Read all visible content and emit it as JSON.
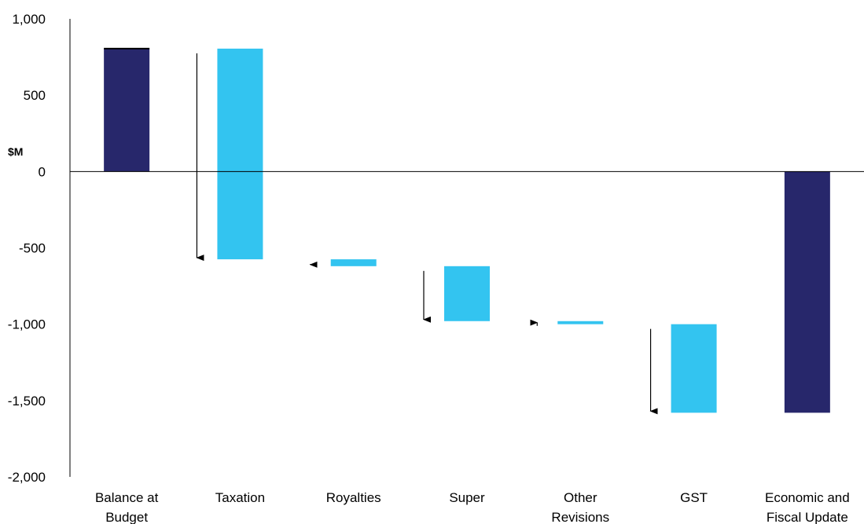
{
  "chart_data": {
    "type": "bar",
    "subtype": "waterfall",
    "ylabel": "$M",
    "ylim": [
      -2000,
      1000
    ],
    "yticks": [
      1000,
      500,
      0,
      -500,
      -1000,
      -1500,
      -2000
    ],
    "ytick_labels": [
      "1,000",
      "500",
      "0",
      "-500",
      "-1,000",
      "-1,500",
      "-2,000"
    ],
    "categories": [
      [
        "Balance at",
        "Budget"
      ],
      [
        "Taxation"
      ],
      [
        "Royalties"
      ],
      [
        "Super"
      ],
      [
        "Other",
        "Revisions"
      ],
      [
        "GST"
      ],
      [
        "Economic and",
        "Fiscal Update"
      ]
    ],
    "bars": [
      {
        "kind": "total",
        "start": 0,
        "end": 805
      },
      {
        "kind": "change",
        "start": 805,
        "end": -575
      },
      {
        "kind": "change",
        "start": -575,
        "end": -620
      },
      {
        "kind": "change",
        "start": -620,
        "end": -980
      },
      {
        "kind": "change",
        "start": -980,
        "end": -1000
      },
      {
        "kind": "change",
        "start": -1000,
        "end": -1580
      },
      {
        "kind": "total",
        "start": 0,
        "end": -1580
      }
    ],
    "grid": false,
    "colors": {
      "total": "#27276b",
      "change": "#33c4f0",
      "axis": "#000000"
    }
  }
}
